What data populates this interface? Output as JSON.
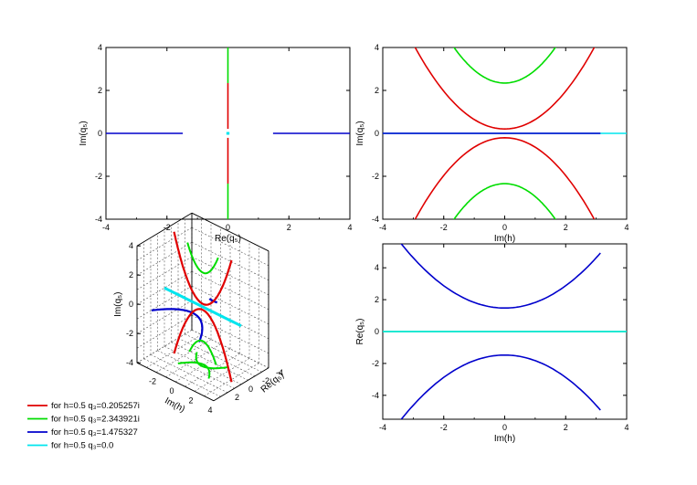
{
  "colors": {
    "q1": "#e00000",
    "q2": "#00dd00",
    "q3": "#0000cc",
    "q4": "#00e5ee"
  },
  "legend": [
    {
      "key": "q1",
      "label": "for h=0.5 q₃=0.205257i"
    },
    {
      "key": "q2",
      "label": "for h=0.5 q₃=2.343921i"
    },
    {
      "key": "q3",
      "label": "for h=0.5 q₃=1.475327"
    },
    {
      "key": "q4",
      "label": "for h=0.5 q₃=0.0"
    }
  ],
  "chart_data": [
    {
      "type": "line",
      "xlabel": "Re(q₅)",
      "ylabel": "Im(q₅)",
      "xlim": [
        -4,
        4
      ],
      "ylim": [
        -4,
        4
      ],
      "xticks": [
        "-4",
        "-2",
        "0",
        "2",
        "4"
      ],
      "yticks": [
        "-4",
        "-2",
        "0",
        "2",
        "4"
      ],
      "series": [
        {
          "key": "q2",
          "segments": [
            [
              [
                0,
                2.34
              ],
              [
                0,
                4
              ]
            ],
            [
              [
                0,
                -2.34
              ],
              [
                0,
                -4
              ]
            ]
          ]
        },
        {
          "key": "q1",
          "segments": [
            [
              [
                0,
                0.21
              ],
              [
                0,
                2.34
              ]
            ],
            [
              [
                0,
                -0.21
              ],
              [
                0,
                -2.34
              ]
            ]
          ]
        },
        {
          "key": "q3",
          "segments": [
            [
              [
                -4,
                0
              ],
              [
                -1.48,
                0
              ]
            ],
            [
              [
                1.48,
                0
              ],
              [
                4,
                0
              ]
            ]
          ]
        },
        {
          "key": "q4",
          "segments": [
            [
              [
                -0.05,
                0
              ],
              [
                0.05,
                0
              ]
            ]
          ]
        }
      ]
    },
    {
      "type": "line",
      "xlabel": "Im(h)",
      "ylabel": "Im(q₅)",
      "xlim": [
        -4,
        4
      ],
      "ylim": [
        -4,
        4
      ],
      "xticks": [
        "-4",
        "-2",
        "0",
        "2",
        "4"
      ],
      "yticks": [
        "-4",
        "-2",
        "0",
        "2",
        "4"
      ],
      "curves": [
        {
          "key": "q1",
          "vertex": 0.205,
          "coef": 0.44,
          "xrange": [
            -3.14,
            3.14
          ]
        },
        {
          "key": "q1",
          "vertex": -0.205,
          "coef": -0.44,
          "xrange": [
            -3.14,
            3.14
          ]
        },
        {
          "key": "q2",
          "vertex": 2.344,
          "coef": 0.6,
          "xrange": [
            -1.75,
            1.75
          ]
        },
        {
          "key": "q2",
          "vertex": -2.344,
          "coef": -0.6,
          "xrange": [
            -1.75,
            1.75
          ]
        }
      ],
      "hlines": [
        {
          "key": "q4",
          "xrange": [
            -4,
            4
          ],
          "y": 0
        },
        {
          "key": "q3",
          "xrange": [
            -4,
            3.14
          ],
          "y": 0
        }
      ]
    },
    {
      "type": "line",
      "xlabel": "Im(h)",
      "ylabel": "Re(q₅)",
      "xlim": [
        -4,
        4
      ],
      "ylim": [
        -5.5,
        5.5
      ],
      "xticks": [
        "-4",
        "-2",
        "0",
        "2",
        "4"
      ],
      "yticks": [
        "-4",
        "-2",
        "0",
        "2",
        "4"
      ],
      "curves": [
        {
          "key": "q3",
          "vertex": 1.475,
          "coef": 0.35,
          "xrange": [
            -3.4,
            3.14
          ]
        },
        {
          "key": "q3",
          "vertex": -1.475,
          "coef": -0.35,
          "xrange": [
            -3.4,
            3.14
          ]
        }
      ],
      "hlines": [
        {
          "key": "q2",
          "xrange": [
            -4,
            4
          ],
          "y": 0
        },
        {
          "key": "q4",
          "xrange": [
            -4,
            4
          ],
          "y": 0
        }
      ]
    },
    {
      "type": "line3d",
      "xlabel": "Im(h)",
      "ylabel": "Re(q₅)",
      "zlabel": "Im(q₅)",
      "zticks": [
        "-4",
        "-2",
        "0",
        "2",
        "4"
      ],
      "xticks": [
        "-2",
        "0",
        "2",
        "4"
      ],
      "yticks": [
        "2",
        "0",
        "-2",
        "-4"
      ]
    }
  ]
}
